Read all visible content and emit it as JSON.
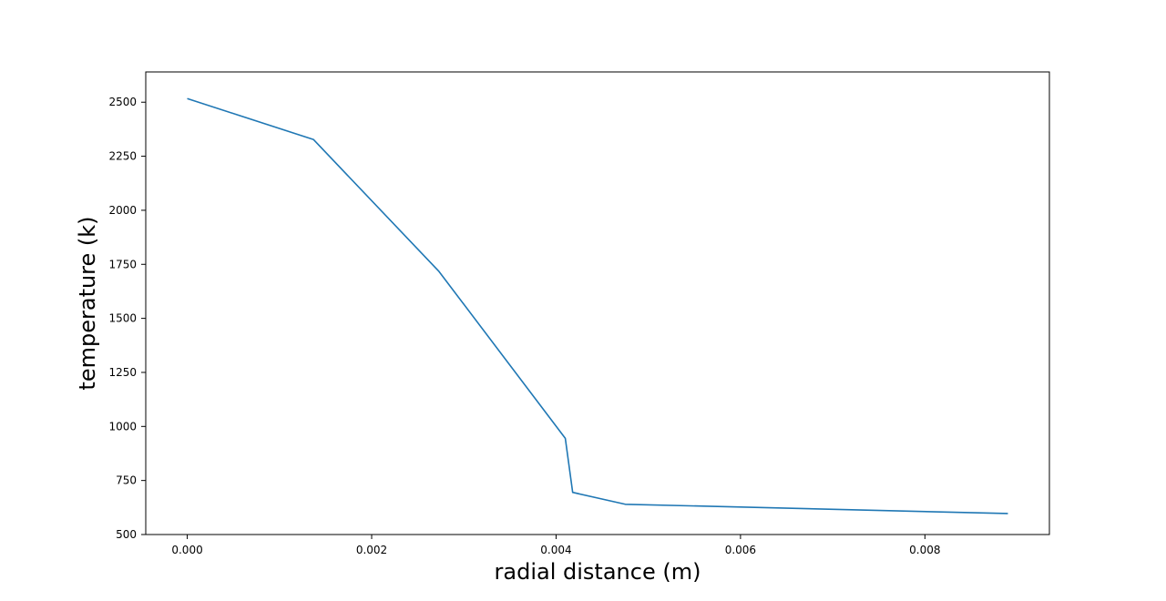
{
  "chart_data": {
    "type": "line",
    "title": "",
    "xlabel": "radial distance (m)",
    "ylabel": "temperature (k)",
    "xlim": [
      -0.00045,
      0.00935
    ],
    "ylim": [
      500,
      2640
    ],
    "xticks": [
      0.0,
      0.002,
      0.004,
      0.006,
      0.008
    ],
    "xtick_labels": [
      "0.000",
      "0.002",
      "0.004",
      "0.006",
      "0.008"
    ],
    "yticks": [
      500,
      750,
      1000,
      1250,
      1500,
      1750,
      2000,
      2250,
      2500
    ],
    "ytick_labels": [
      "500",
      "750",
      "1000",
      "1250",
      "1500",
      "1750",
      "2000",
      "2250",
      "2500"
    ],
    "grid": false,
    "series": [
      {
        "color": "#1f77b4",
        "x": [
          0.0,
          0.00137,
          0.00273,
          0.0041,
          0.00418,
          0.00475,
          0.0089
        ],
        "y": [
          2517,
          2327,
          1717,
          945,
          695,
          640,
          597
        ]
      }
    ]
  }
}
